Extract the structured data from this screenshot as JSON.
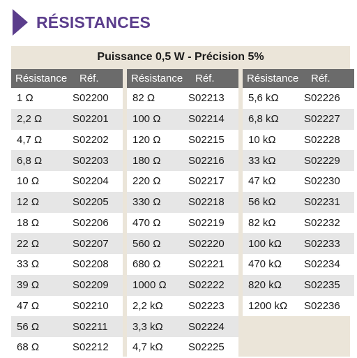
{
  "header": {
    "title": "RÉSISTANCES"
  },
  "subtitle": "Puissance 0,5 W - Précision 5%",
  "columns": {
    "value_header": "Résistance",
    "ref_header": "Réf."
  },
  "col1": {
    "rows": [
      {
        "value": "1 Ω",
        "ref": "S02200"
      },
      {
        "value": "2,2 Ω",
        "ref": "S02201"
      },
      {
        "value": "4,7 Ω",
        "ref": "S02202"
      },
      {
        "value": "6,8 Ω",
        "ref": "S02203"
      },
      {
        "value": "10 Ω",
        "ref": "S02204"
      },
      {
        "value": "12 Ω",
        "ref": "S02205"
      },
      {
        "value": "18 Ω",
        "ref": "S02206"
      },
      {
        "value": "22 Ω",
        "ref": "S02207"
      },
      {
        "value": "33 Ω",
        "ref": "S02208"
      },
      {
        "value": "39 Ω",
        "ref": "S02209"
      },
      {
        "value": "47 Ω",
        "ref": "S02210"
      },
      {
        "value": "56 Ω",
        "ref": "S02211"
      },
      {
        "value": "68 Ω",
        "ref": "S02212"
      }
    ]
  },
  "col2": {
    "rows": [
      {
        "value": "82 Ω",
        "ref": "S02213"
      },
      {
        "value": "100 Ω",
        "ref": "S02214"
      },
      {
        "value": "120 Ω",
        "ref": "S02215"
      },
      {
        "value": "180 Ω",
        "ref": "S02216"
      },
      {
        "value": "220 Ω",
        "ref": "S02217"
      },
      {
        "value": "330 Ω",
        "ref": "S02218"
      },
      {
        "value": "470 Ω",
        "ref": "S02219"
      },
      {
        "value": "560 Ω",
        "ref": "S02220"
      },
      {
        "value": "680 Ω",
        "ref": "S02221"
      },
      {
        "value": "1000 Ω",
        "ref": "S02222"
      },
      {
        "value": "2,2 kΩ",
        "ref": "S02223"
      },
      {
        "value": "3,3 kΩ",
        "ref": "S02224"
      },
      {
        "value": "4,7 kΩ",
        "ref": "S02225"
      }
    ]
  },
  "col3": {
    "rows": [
      {
        "value": "5,6 kΩ",
        "ref": "S02226"
      },
      {
        "value": "6,8 kΩ",
        "ref": "S02227"
      },
      {
        "value": "10 kΩ",
        "ref": "S02228"
      },
      {
        "value": "33 kΩ",
        "ref": "S02229"
      },
      {
        "value": "47 kΩ",
        "ref": "S02230"
      },
      {
        "value": "56 kΩ",
        "ref": "S02231"
      },
      {
        "value": "82 kΩ",
        "ref": "S02232"
      },
      {
        "value": "100 kΩ",
        "ref": "S02233"
      },
      {
        "value": "470 kΩ",
        "ref": "S02234"
      },
      {
        "value": "820 kΩ",
        "ref": "S02235"
      },
      {
        "value": "1200 kΩ",
        "ref": "S02236"
      }
    ]
  }
}
